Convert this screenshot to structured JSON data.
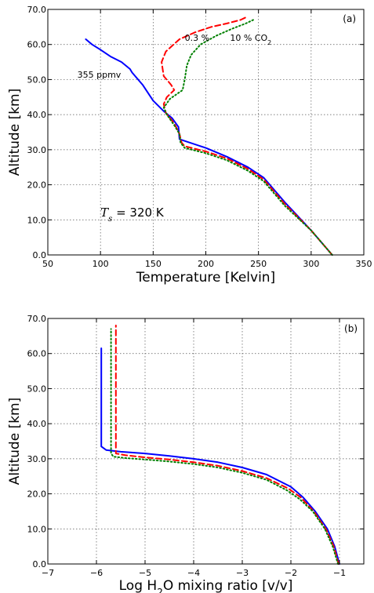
{
  "chart_data": [
    {
      "type": "line",
      "panel_label": "(a)",
      "xlabel": "Temperature [Kelvin]",
      "ylabel": "Altitude [km]",
      "xlim": [
        50,
        350
      ],
      "ylim": [
        0,
        70
      ],
      "xticks": [
        "50",
        "100",
        "150",
        "200",
        "250",
        "300",
        "350"
      ],
      "yticks": [
        "0.0",
        "10.0",
        "20.0",
        "30.0",
        "40.0",
        "50.0",
        "60.0",
        "70.0"
      ],
      "grid": true,
      "annotations": [
        {
          "text": "0.3 %",
          "x": 180,
          "y": 61
        },
        {
          "text": "10 % CO",
          "sub": "2",
          "x": 223,
          "y": 61
        },
        {
          "text": "355 ppmv",
          "x": 78,
          "y": 50.5
        },
        {
          "text_pre": "T",
          "text_sub": "s",
          "text_post": " = 320 K",
          "x": 100,
          "y": 11
        }
      ],
      "series": [
        {
          "color": "#0000ff",
          "style": "solid",
          "x": [
            320,
            300,
            275,
            255,
            240,
            220,
            200,
            180,
            175,
            174.5,
            174,
            168,
            160,
            150,
            140,
            130,
            128,
            120,
            110,
            100,
            92,
            86
          ],
          "y": [
            0,
            7,
            15,
            22,
            25,
            28,
            30.5,
            32.5,
            33,
            35,
            36.5,
            39,
            41,
            44,
            48.5,
            52,
            53,
            55,
            56.5,
            58.5,
            60,
            61.5
          ]
        },
        {
          "color": "#ff0000",
          "style": "dashed",
          "x": [
            320,
            300,
            275,
            255,
            240,
            220,
            200,
            180,
            177,
            175,
            170,
            162,
            160,
            163,
            170,
            167,
            160,
            158,
            162,
            175,
            190,
            205,
            220,
            233,
            240
          ],
          "y": [
            0,
            7,
            14.5,
            21.5,
            24.5,
            27.5,
            29.5,
            31,
            32,
            34.5,
            37.5,
            40.5,
            43,
            45,
            47,
            48.5,
            51,
            55,
            58,
            61.5,
            63.5,
            65,
            66,
            67,
            68
          ]
        },
        {
          "color": "#008000",
          "style": "dotted",
          "x": [
            320,
            300,
            275,
            255,
            240,
            220,
            200,
            180,
            176,
            175,
            170,
            163,
            160,
            166,
            178,
            180,
            182,
            186,
            195,
            210,
            225,
            238,
            245
          ],
          "y": [
            0,
            7,
            14,
            21,
            24,
            27,
            29,
            30.5,
            32,
            34.5,
            37,
            40,
            42,
            44.5,
            47,
            50,
            54,
            57,
            60,
            62.5,
            64.5,
            66,
            67
          ]
        }
      ]
    },
    {
      "type": "line",
      "panel_label": "(b)",
      "xlabel_pre": "Log H",
      "xlabel_sub": "2",
      "xlabel_post": "O mixing ratio [v/v]",
      "ylabel": "Altitude [km]",
      "xlim": [
        -7,
        -0.5
      ],
      "ylim": [
        0,
        70
      ],
      "xticks": [
        "−7",
        "−6",
        "−5",
        "−4",
        "−3",
        "−2",
        "−1"
      ],
      "yticks": [
        "0.0",
        "10.0",
        "20.0",
        "30.0",
        "40.0",
        "50.0",
        "60.0",
        "70.0"
      ],
      "grid": true,
      "series": [
        {
          "color": "#0000ff",
          "style": "solid",
          "x": [
            -1,
            -1.1,
            -1.25,
            -1.5,
            -1.75,
            -2,
            -2.5,
            -3,
            -3.5,
            -4,
            -4.5,
            -5,
            -5.5,
            -5.8,
            -5.9,
            -5.9
          ],
          "y": [
            0,
            5,
            10,
            15,
            19,
            22,
            25.5,
            27.5,
            29,
            30,
            30.8,
            31.5,
            32,
            32.5,
            33.5,
            61.5
          ]
        },
        {
          "color": "#ff0000",
          "style": "dashed",
          "x": [
            -1.02,
            -1.12,
            -1.28,
            -1.53,
            -1.8,
            -2.05,
            -2.5,
            -3,
            -3.5,
            -4,
            -4.5,
            -5,
            -5.4,
            -5.6,
            -5.6
          ],
          "y": [
            0,
            5,
            10,
            15,
            19,
            21.5,
            24.5,
            26.5,
            28,
            29,
            29.8,
            30.4,
            31,
            31.5,
            68
          ]
        },
        {
          "color": "#008000",
          "style": "dotted",
          "x": [
            -1.03,
            -1.14,
            -1.3,
            -1.55,
            -1.82,
            -2.08,
            -2.5,
            -3,
            -3.5,
            -4,
            -4.5,
            -5,
            -5.4,
            -5.65,
            -5.7,
            -5.7
          ],
          "y": [
            0,
            5,
            10,
            15,
            18.5,
            21,
            24,
            26,
            27.5,
            28.5,
            29.2,
            29.8,
            30.2,
            30.6,
            31.5,
            67
          ]
        }
      ]
    }
  ]
}
